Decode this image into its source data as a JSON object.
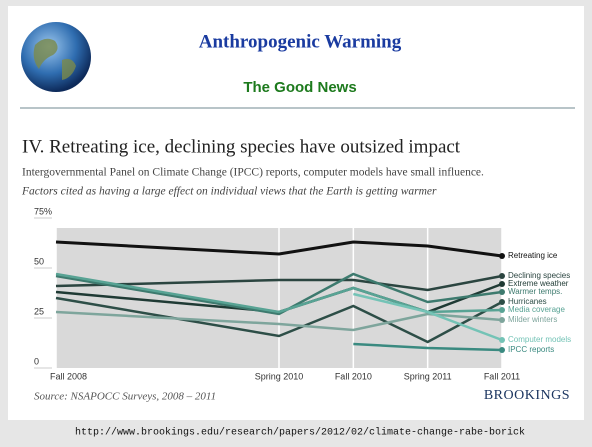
{
  "header": {
    "title": "Anthropogenic Warming",
    "subtitle": "The Good News"
  },
  "chart_data": {
    "type": "line",
    "title": "IV. Retreating ice, declining species have outsized impact",
    "subtitle": "Intergovernmental Panel on Climate Change (IPCC) reports, computer models have small influence.",
    "note": "Factors cited as having a large effect on individual views that the Earth is getting warmer",
    "x": [
      2008.75,
      2010.25,
      2010.75,
      2011.25,
      2011.75
    ],
    "xlim": [
      2008.75,
      2011.75
    ],
    "xticks": [
      {
        "value": 2008.75,
        "label": "Fall 2008"
      },
      {
        "value": 2010.25,
        "label": "Spring 2010"
      },
      {
        "value": 2010.75,
        "label": "Fall 2010"
      },
      {
        "value": 2011.25,
        "label": "Spring 2011"
      },
      {
        "value": 2011.75,
        "label": "Fall 2011"
      }
    ],
    "ylim": [
      0,
      75
    ],
    "yticks": [
      0,
      25,
      50,
      {
        "value": 75,
        "label": "75%"
      }
    ],
    "series": [
      {
        "name": "Retreating ice",
        "color": "#111111",
        "values": [
          63,
          57,
          63,
          61,
          56
        ]
      },
      {
        "name": "Declining species",
        "color": "#2b4540",
        "values": [
          41,
          44,
          44,
          39,
          46
        ]
      },
      {
        "name": "Extreme weather",
        "color": "#1f3a34",
        "values": [
          38,
          28,
          40,
          28,
          42
        ]
      },
      {
        "name": "Warmer temps.",
        "color": "#3d7a6e",
        "values": [
          46,
          27,
          47,
          33,
          38
        ]
      },
      {
        "name": "Hurricanes",
        "color": "#2d4e47",
        "values": [
          35,
          16,
          31,
          13,
          33
        ]
      },
      {
        "name": "Media coverage",
        "color": "#58a394",
        "values": [
          47,
          28,
          40,
          28,
          29
        ]
      },
      {
        "name": "Milder winters",
        "color": "#7ea59c",
        "values": [
          28,
          22,
          19,
          27,
          24
        ]
      },
      {
        "name": "Computer models",
        "color": "#74c3b6",
        "values": [
          null,
          null,
          37,
          28,
          14
        ]
      },
      {
        "name": "IPCC reports",
        "color": "#3a8a80",
        "values": [
          null,
          null,
          12,
          10,
          9
        ]
      }
    ],
    "source": "Source: NSAPOCC Surveys, 2008 – 2011",
    "brand": "BROOKINGS"
  },
  "footer": {
    "url": "http://www.brookings.edu/research/papers/2012/02/climate-change-rabe-borick"
  }
}
